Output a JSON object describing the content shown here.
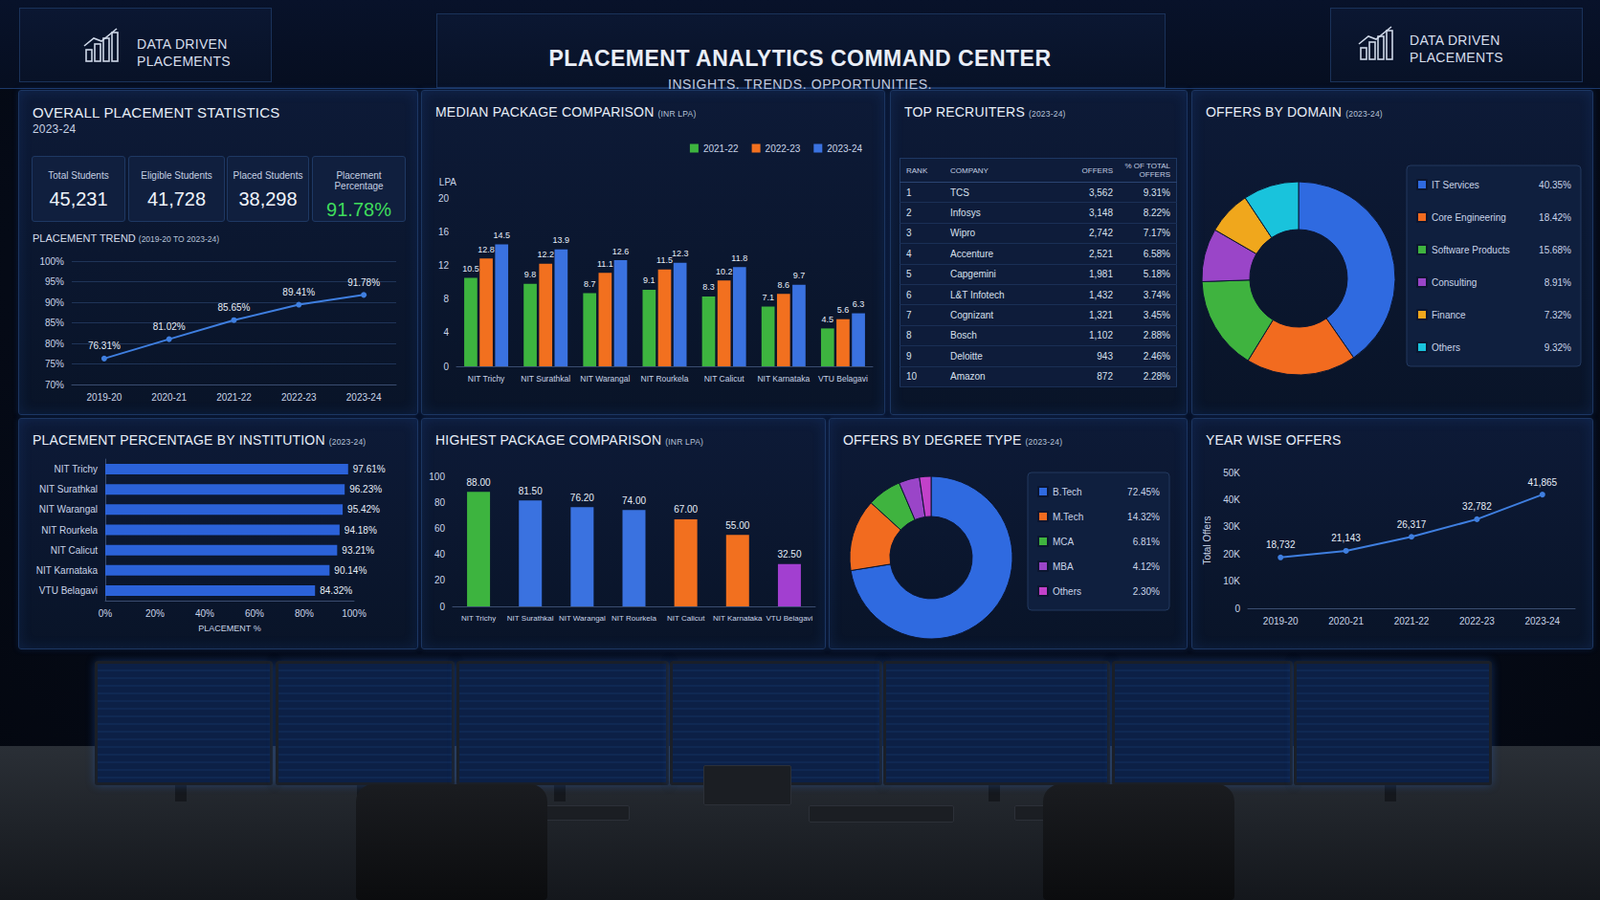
{
  "header": {
    "title": "PLACEMENT ANALYTICS COMMAND CENTER",
    "subtitle": "INSIGHTS. TRENDS. OPPORTUNITIES.",
    "brand": [
      "DATA DRIVEN",
      "PLACEMENTS"
    ]
  },
  "overall": {
    "title": "OVERALL PLACEMENT STATISTICS",
    "year": "2023-24",
    "stats": [
      {
        "label": "Total Students",
        "value": "45,231"
      },
      {
        "label": "Eligible Students",
        "value": "41,728"
      },
      {
        "label": "Placed Students",
        "value": "38,298"
      },
      {
        "label": "Placement Percentage",
        "value": "91.78%"
      }
    ]
  },
  "recruiters": {
    "title": "TOP RECRUITERS",
    "subtitle": "(2023-24)",
    "columns": [
      "RANK",
      "COMPANY",
      "OFFERS",
      "% OF TOTAL OFFERS"
    ],
    "rows": [
      [
        "1",
        "TCS",
        "3,562",
        "9.31%"
      ],
      [
        "2",
        "Infosys",
        "3,148",
        "8.22%"
      ],
      [
        "3",
        "Wipro",
        "2,742",
        "7.17%"
      ],
      [
        "4",
        "Accenture",
        "2,521",
        "6.58%"
      ],
      [
        "5",
        "Capgemini",
        "1,981",
        "5.18%"
      ],
      [
        "6",
        "L&T Infotech",
        "1,432",
        "3.74%"
      ],
      [
        "7",
        "Cognizant",
        "1,321",
        "3.45%"
      ],
      [
        "8",
        "Bosch",
        "1,102",
        "2.88%"
      ],
      [
        "9",
        "Deloitte",
        "943",
        "2.46%"
      ],
      [
        "10",
        "Amazon",
        "872",
        "2.28%"
      ]
    ]
  },
  "chart_data": [
    {
      "type": "line",
      "title": "PLACEMENT TREND",
      "subtitle": "(2019-20 TO 2023-24)",
      "categories": [
        "2019-20",
        "2020-21",
        "2021-22",
        "2022-23",
        "2023-24"
      ],
      "values": [
        76.31,
        81.02,
        85.65,
        89.41,
        91.78
      ],
      "value_labels": [
        "76.31%",
        "81.02%",
        "85.65%",
        "89.41%",
        "91.78%"
      ],
      "data_labels": true,
      "color": "#3f7fe0",
      "marker": "circle",
      "ylim": [
        70,
        100
      ],
      "yticks": [
        {
          "value": 70,
          "label": "70%"
        },
        {
          "value": 75,
          "label": "75%"
        },
        {
          "value": 80,
          "label": "80%"
        },
        {
          "value": 85,
          "label": "85%"
        },
        {
          "value": 90,
          "label": "90%"
        },
        {
          "value": 95,
          "label": "95%"
        },
        {
          "value": 100,
          "label": "100%"
        }
      ],
      "grid": true
    },
    {
      "type": "bar",
      "title": "MEDIAN PACKAGE COMPARISON",
      "subtitle": "(INR LPA)",
      "ylabel": "LPA",
      "categories": [
        "NIT Trichy",
        "NIT Surathkal",
        "NIT Warangal",
        "NIT Rourkela",
        "NIT Calicut",
        "NIT Karnataka",
        "VTU Belagavi"
      ],
      "series": [
        {
          "name": "2021-22",
          "color": "#3db43f",
          "values": [
            10.5,
            9.8,
            8.7,
            9.1,
            8.3,
            7.1,
            4.5
          ]
        },
        {
          "name": "2022-23",
          "color": "#f2701f",
          "values": [
            12.8,
            12.2,
            11.1,
            11.5,
            10.2,
            8.6,
            5.6
          ]
        },
        {
          "name": "2023-24",
          "color": "#3a72e0",
          "values": [
            14.5,
            13.9,
            12.6,
            12.3,
            11.8,
            9.7,
            6.3
          ]
        }
      ],
      "ylim": [
        0,
        20
      ],
      "yticks": [
        0,
        4,
        8,
        12,
        16,
        20
      ],
      "data_labels": true,
      "legend": "top-right",
      "grid": false
    },
    {
      "type": "pie",
      "title": "OFFERS BY DOMAIN",
      "subtitle": "(2023-24)",
      "categories": [
        "IT Services",
        "Core Engineering",
        "Software Products",
        "Consulting",
        "Finance",
        "Others"
      ],
      "values": [
        40.35,
        18.42,
        15.68,
        8.91,
        7.32,
        9.32
      ],
      "value_labels": [
        "40.35%",
        "18.42%",
        "15.68%",
        "8.91%",
        "7.32%",
        "9.32%"
      ],
      "colors": [
        "#2f6ae0",
        "#f26b1f",
        "#3fb33f",
        "#9a45c8",
        "#f0a71c",
        "#19c3dc"
      ],
      "legend": "right"
    },
    {
      "type": "bar",
      "orientation": "horizontal",
      "title": "PLACEMENT PERCENTAGE BY INSTITUTION",
      "subtitle": "(2023-24)",
      "xlabel": "PLACEMENT %",
      "categories": [
        "NIT Trichy",
        "NIT Surathkal",
        "NIT Warangal",
        "NIT Rourkela",
        "NIT Calicut",
        "NIT Karnataka",
        "VTU Belagavi"
      ],
      "values": [
        97.61,
        96.23,
        95.42,
        94.18,
        93.21,
        90.14,
        84.32
      ],
      "value_labels": [
        "97.61%",
        "96.23%",
        "95.42%",
        "94.18%",
        "93.21%",
        "90.14%",
        "84.32%"
      ],
      "data_labels": true,
      "color": "#2b62d9",
      "xlim": [
        0,
        100
      ],
      "xticks": [
        {
          "value": 0,
          "label": "0%"
        },
        {
          "value": 20,
          "label": "20%"
        },
        {
          "value": 40,
          "label": "40%"
        },
        {
          "value": 60,
          "label": "60%"
        },
        {
          "value": 80,
          "label": "80%"
        },
        {
          "value": 100,
          "label": "100%"
        }
      ],
      "grid": false
    },
    {
      "type": "bar",
      "title": "HIGHEST PACKAGE COMPARISON",
      "subtitle": "(INR LPA)",
      "categories": [
        "NIT Trichy",
        "NIT Surathkal",
        "NIT Warangal",
        "NIT Rourkela",
        "NIT Calicut",
        "NIT Karnataka",
        "VTU Belagavi"
      ],
      "values": [
        88,
        81.5,
        76.2,
        74,
        67,
        55,
        32.5
      ],
      "value_labels": [
        "88.00",
        "81.50",
        "76.20",
        "74.00",
        "67.00",
        "55.00",
        "32.50"
      ],
      "data_labels": true,
      "colors": [
        "#3db43f",
        "#3a72e0",
        "#3a72e0",
        "#3a72e0",
        "#f2701f",
        "#f2701f",
        "#a23fd0"
      ],
      "ylim": [
        0,
        100
      ],
      "yticks": [
        0,
        20,
        40,
        60,
        80,
        100
      ],
      "grid": false
    },
    {
      "type": "pie",
      "title": "OFFERS BY DEGREE TYPE",
      "subtitle": "(2023-24)",
      "categories": [
        "B.Tech",
        "M.Tech",
        "MCA",
        "MBA",
        "Others"
      ],
      "values": [
        72.45,
        14.32,
        6.81,
        4.12,
        2.3
      ],
      "value_labels": [
        "72.45%",
        "14.32%",
        "6.81%",
        "4.12%",
        "2.30%"
      ],
      "colors": [
        "#2f6ae0",
        "#f26b1f",
        "#3fb33f",
        "#9a45c8",
        "#c241c9"
      ],
      "legend": "right"
    },
    {
      "type": "line",
      "title": "YEAR WISE OFFERS",
      "ylabel": "Total Offers",
      "categories": [
        "2019-20",
        "2020-21",
        "2021-22",
        "2022-23",
        "2023-24"
      ],
      "values": [
        18732,
        21143,
        26317,
        32782,
        41865
      ],
      "value_labels": [
        "18,732",
        "21,143",
        "26,317",
        "32,782",
        "41,865"
      ],
      "data_labels": true,
      "color": "#3f7fe0",
      "marker": "circle",
      "ylim": [
        0,
        50000
      ],
      "yticks": [
        0,
        {
          "value": 10000,
          "label": "10K"
        },
        {
          "value": 20000,
          "label": "20K"
        },
        {
          "value": 30000,
          "label": "30K"
        },
        {
          "value": 40000,
          "label": "40K"
        },
        {
          "value": 50000,
          "label": "50K"
        }
      ],
      "grid": false
    }
  ]
}
